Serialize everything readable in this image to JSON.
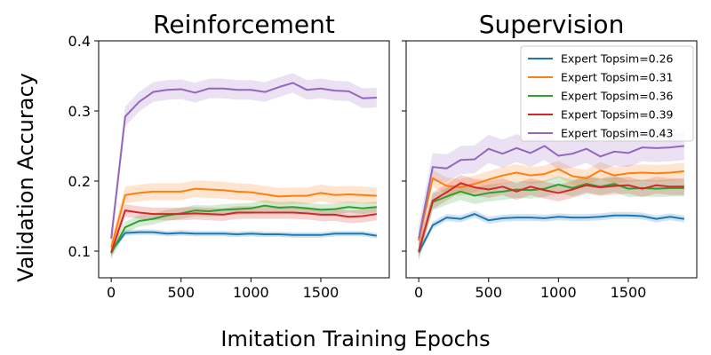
{
  "chart_data": {
    "type": "line",
    "xlabel": "Imitation Training Epochs",
    "ylabel": "Validation Accuracy",
    "xlim": [
      -90,
      1990
    ],
    "ylim": [
      0.062,
      0.4
    ],
    "xticks": [
      0,
      500,
      1000,
      1500
    ],
    "yticks": [
      0.1,
      0.2,
      0.3,
      0.4
    ],
    "ytick_labels": [
      "0.1",
      "0.2",
      "0.3",
      "0.4"
    ],
    "legend_location": "top-right",
    "x": [
      0,
      100,
      200,
      300,
      400,
      500,
      600,
      700,
      800,
      900,
      1000,
      1100,
      1200,
      1300,
      1400,
      1500,
      1600,
      1700,
      1800,
      1900
    ],
    "panels": [
      {
        "title": "Reinforcement",
        "series": [
          {
            "name": "Expert Topsim=0.26",
            "color": "#1f77b4",
            "band": 0.004,
            "values": [
              0.1,
              0.126,
              0.127,
              0.127,
              0.125,
              0.126,
              0.125,
              0.125,
              0.125,
              0.124,
              0.125,
              0.124,
              0.124,
              0.123,
              0.123,
              0.123,
              0.125,
              0.125,
              0.125,
              0.122
            ]
          },
          {
            "name": "Expert Topsim=0.31",
            "color": "#ff7f0e",
            "band": 0.012,
            "values": [
              0.105,
              0.18,
              0.183,
              0.185,
              0.185,
              0.185,
              0.189,
              0.188,
              0.187,
              0.185,
              0.184,
              0.181,
              0.178,
              0.179,
              0.179,
              0.183,
              0.18,
              0.181,
              0.18,
              0.179
            ]
          },
          {
            "name": "Expert Topsim=0.36",
            "color": "#2ca02c",
            "band": 0.008,
            "values": [
              0.097,
              0.134,
              0.143,
              0.146,
              0.151,
              0.154,
              0.158,
              0.157,
              0.159,
              0.16,
              0.161,
              0.165,
              0.162,
              0.163,
              0.161,
              0.159,
              0.16,
              0.163,
              0.161,
              0.163
            ]
          },
          {
            "name": "Expert Topsim=0.39",
            "color": "#d62728",
            "band": 0.009,
            "values": [
              0.098,
              0.158,
              0.155,
              0.153,
              0.153,
              0.153,
              0.154,
              0.153,
              0.152,
              0.155,
              0.155,
              0.155,
              0.155,
              0.155,
              0.154,
              0.152,
              0.152,
              0.149,
              0.15,
              0.153
            ]
          },
          {
            "name": "Expert Topsim=0.43",
            "color": "#9467bd",
            "band": 0.014,
            "values": [
              0.118,
              0.292,
              0.313,
              0.327,
              0.33,
              0.331,
              0.326,
              0.332,
              0.332,
              0.33,
              0.33,
              0.327,
              0.334,
              0.34,
              0.33,
              0.332,
              0.329,
              0.328,
              0.318,
              0.319
            ]
          }
        ]
      },
      {
        "title": "Supervision",
        "series": [
          {
            "name": "Expert Topsim=0.26",
            "color": "#1f77b4",
            "band": 0.005,
            "values": [
              0.098,
              0.137,
              0.148,
              0.146,
              0.153,
              0.144,
              0.147,
              0.148,
              0.148,
              0.147,
              0.149,
              0.148,
              0.148,
              0.149,
              0.151,
              0.151,
              0.15,
              0.146,
              0.149,
              0.146
            ]
          },
          {
            "name": "Expert Topsim=0.31",
            "color": "#ff7f0e",
            "band": 0.012,
            "values": [
              0.115,
              0.204,
              0.193,
              0.191,
              0.196,
              0.202,
              0.208,
              0.212,
              0.208,
              0.21,
              0.217,
              0.207,
              0.204,
              0.215,
              0.208,
              0.211,
              0.212,
              0.211,
              0.212,
              0.214
            ]
          },
          {
            "name": "Expert Topsim=0.36",
            "color": "#2ca02c",
            "band": 0.012,
            "values": [
              0.1,
              0.17,
              0.178,
              0.185,
              0.179,
              0.183,
              0.185,
              0.188,
              0.187,
              0.189,
              0.195,
              0.19,
              0.196,
              0.192,
              0.196,
              0.189,
              0.19,
              0.189,
              0.19,
              0.19
            ]
          },
          {
            "name": "Expert Topsim=0.39",
            "color": "#d62728",
            "band": 0.012,
            "values": [
              0.099,
              0.172,
              0.184,
              0.197,
              0.191,
              0.188,
              0.192,
              0.185,
              0.192,
              0.187,
              0.183,
              0.188,
              0.194,
              0.191,
              0.193,
              0.194,
              0.189,
              0.194,
              0.192,
              0.192
            ]
          },
          {
            "name": "Expert Topsim=0.43",
            "color": "#9467bd",
            "band": 0.02,
            "values": [
              0.118,
              0.22,
              0.218,
              0.23,
              0.231,
              0.246,
              0.239,
              0.247,
              0.24,
              0.25,
              0.236,
              0.239,
              0.246,
              0.235,
              0.242,
              0.24,
              0.248,
              0.247,
              0.248,
              0.25
            ]
          }
        ]
      }
    ]
  }
}
